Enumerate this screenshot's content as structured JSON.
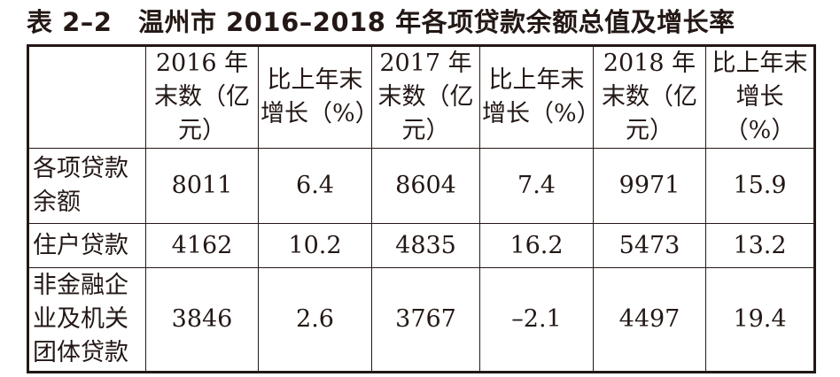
{
  "title": "表 2–2　温州市 2016–2018 年各项贷款余额总值及增长率",
  "table": {
    "header": [
      "2016 年末数（亿元）",
      "比上年末增长（%）",
      "2017 年末数（亿元）",
      "比上年末增长（%）",
      "2018 年末数（亿元）",
      "比上年末增长（%）"
    ],
    "rows": [
      [
        "各项贷款余额",
        "8011",
        "6.4",
        "8604",
        "7.4",
        "9971",
        "15.9"
      ],
      [
        "住户贷款",
        "4162",
        "10.2",
        "4835",
        "16.2",
        "5473",
        "13.2"
      ],
      [
        "非金融企业及机关团体贷款",
        "3846",
        "2.6",
        "3767",
        "–2.1",
        "4497",
        "19.4"
      ]
    ]
  }
}
